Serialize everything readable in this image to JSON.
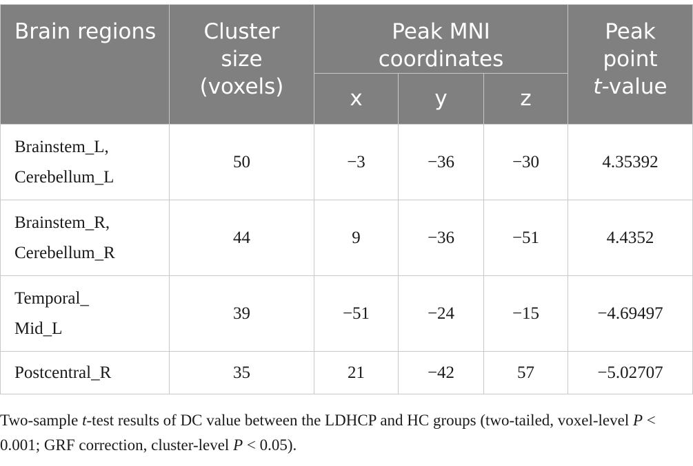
{
  "table": {
    "headers": {
      "brain_regions": "Brain regions",
      "cluster_size": "Cluster size (voxels)",
      "peak_mni": "Peak MNI coordinates",
      "peak_point_prefix": "Peak point",
      "peak_point_t": "t",
      "peak_point_suffix": "-value",
      "x": "x",
      "y": "y",
      "z": "z"
    },
    "rows": [
      {
        "region_line1": "Brainstem_L,",
        "region_line2": "Cerebellum_L",
        "cluster": "50",
        "x": "−3",
        "y": "−36",
        "z": "−30",
        "t": "4.35392"
      },
      {
        "region_line1": "Brainstem_R,",
        "region_line2": "Cerebellum_R",
        "cluster": "44",
        "x": "9",
        "y": "−36",
        "z": "−51",
        "t": "4.4352"
      },
      {
        "region_line1": "Temporal_",
        "region_line2": "Mid_L",
        "cluster": "39",
        "x": "−51",
        "y": "−24",
        "z": "−15",
        "t": "−4.69497"
      },
      {
        "region_line1": "Postcentral_R",
        "region_line2": "",
        "cluster": "35",
        "x": "21",
        "y": "−42",
        "z": "57",
        "t": "−5.02707"
      }
    ]
  },
  "caption": {
    "part1": "Two-sample ",
    "t_italic": "t",
    "part2": "-test results of DC value between the LDHCP and HC groups (two-tailed, voxel-level ",
    "p1_italic": "P",
    "part3": " < 0.001; GRF correction, cluster-level ",
    "p2_italic": "P",
    "part4": " < 0.05)."
  },
  "colors": {
    "header_bg": "#808080",
    "header_text": "#ffffff",
    "border": "#c8c8c8"
  }
}
